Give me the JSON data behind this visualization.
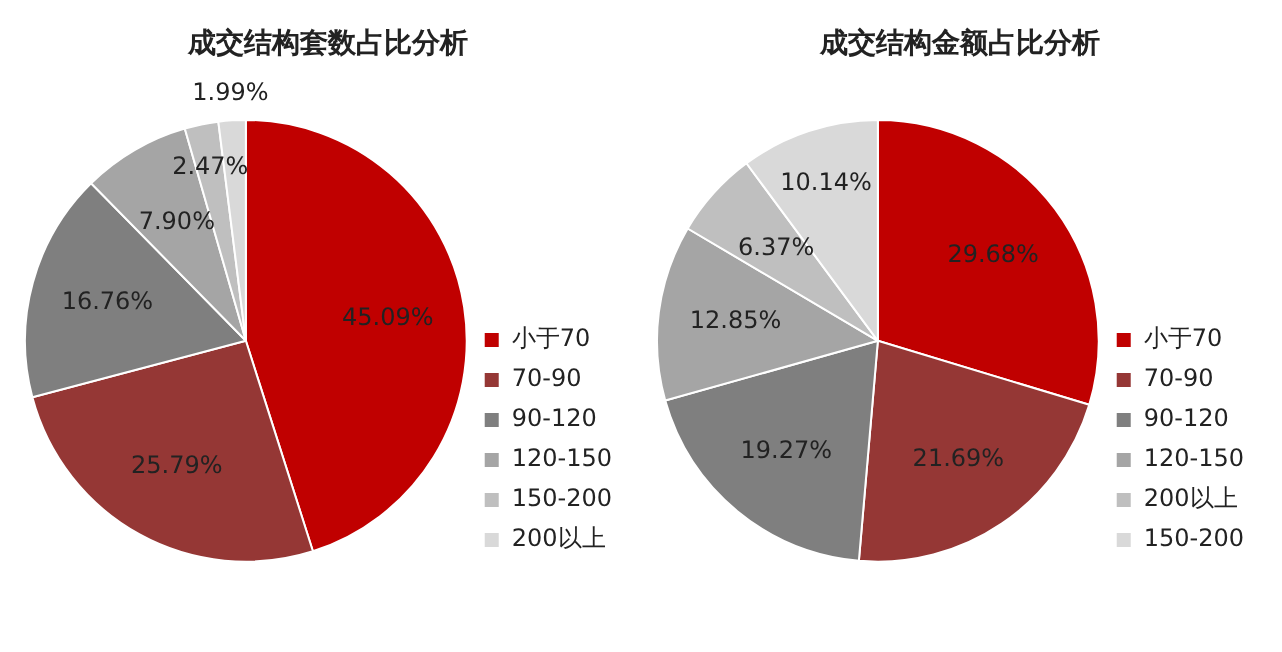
{
  "chart_data": [
    {
      "type": "pie",
      "title": "成交结构套数占比分析",
      "categories": [
        "小于70",
        "70-90",
        "90-120",
        "120-150",
        "150-200",
        "200以上"
      ],
      "values": [
        45.09,
        25.79,
        16.76,
        7.9,
        2.47,
        1.99
      ],
      "colors": [
        "#c00000",
        "#953735",
        "#7f7f7f",
        "#a5a5a5",
        "#bfbfbf",
        "#d9d9d9"
      ],
      "value_labels": [
        "45.09%",
        "25.79%",
        "16.76%",
        "7.90%",
        "2.47%",
        "1.99%"
      ],
      "legend": "right"
    },
    {
      "type": "pie",
      "title": "成交结构金额占比分析",
      "categories": [
        "小于70",
        "70-90",
        "90-120",
        "120-150",
        "200以上",
        "150-200"
      ],
      "values": [
        29.68,
        21.69,
        19.27,
        12.85,
        6.37,
        10.14
      ],
      "colors": [
        "#c00000",
        "#953735",
        "#7f7f7f",
        "#a5a5a5",
        "#bfbfbf",
        "#d9d9d9"
      ],
      "value_labels": [
        "29.68%",
        "21.69%",
        "19.27%",
        "12.85%",
        "6.37%",
        "10.14%"
      ],
      "legend": "right"
    }
  ]
}
